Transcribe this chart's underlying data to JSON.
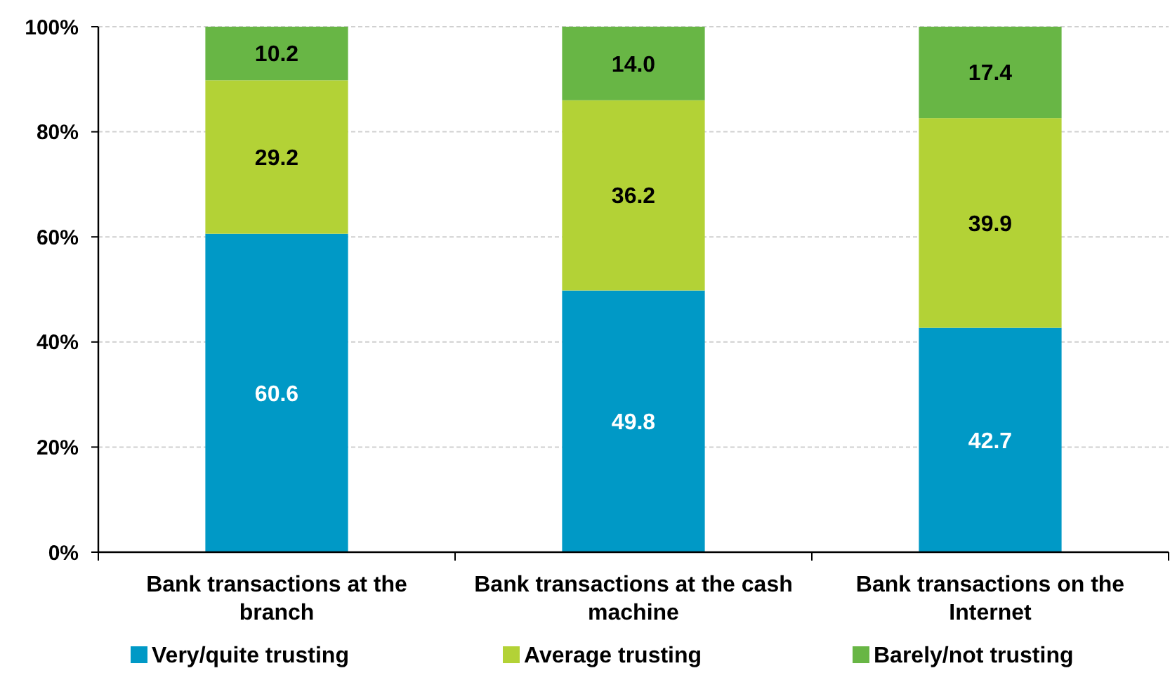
{
  "chart_data": {
    "type": "bar",
    "stacked": true,
    "categories": [
      "Bank transactions at the branch",
      "Bank transactions at the cash machine",
      "Bank transactions on the Internet"
    ],
    "series": [
      {
        "name": "Very/quite trusting",
        "color": "#0099c6",
        "values": [
          60.6,
          49.8,
          42.7
        ],
        "value_labels": [
          "60.6",
          "49.8",
          "42.7"
        ]
      },
      {
        "name": "Average trusting",
        "color": "#b3d236",
        "values": [
          29.2,
          36.2,
          39.9
        ],
        "value_labels": [
          "29.2",
          "36.2",
          "39.9"
        ]
      },
      {
        "name": "Barely/not trusting",
        "color": "#68b645",
        "values": [
          10.2,
          14.0,
          17.4
        ],
        "value_labels": [
          "10.2",
          "14.0",
          "17.4"
        ]
      }
    ],
    "ylim": [
      0,
      100
    ],
    "yticks": [
      {
        "value": 0,
        "label": "0%"
      },
      {
        "value": 20,
        "label": "20%"
      },
      {
        "value": 40,
        "label": "40%"
      },
      {
        "value": 60,
        "label": "60%"
      },
      {
        "value": 80,
        "label": "80%"
      },
      {
        "value": 100,
        "label": "100%"
      }
    ],
    "grid": "y",
    "legend": "bottom"
  }
}
